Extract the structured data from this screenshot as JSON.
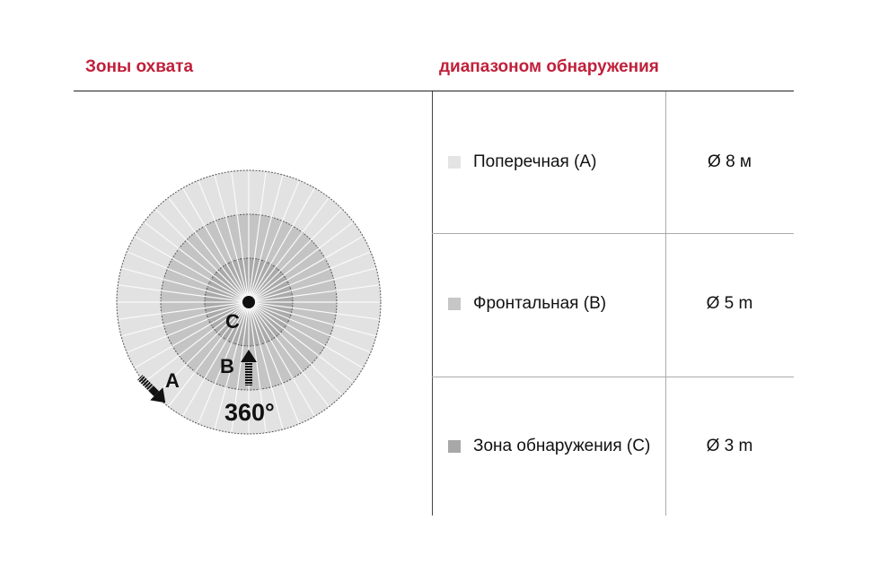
{
  "header": {
    "left_title": "Зоны охвата",
    "right_title": "диапазоном обнаружения"
  },
  "accent_color": "#c0203a",
  "diagram": {
    "angle_label": "360°",
    "zone_labels": [
      "A",
      "B",
      "C"
    ],
    "zone_colors": {
      "A": "#e2e2e2",
      "B": "#c4c4c4",
      "C": "#aaaaaa"
    }
  },
  "zones": [
    {
      "name": "Поперечная (A)",
      "diameter": "Ø 8 м",
      "color": "#e4e4e4"
    },
    {
      "name": "Фронтальная (B)",
      "diameter": "Ø 5 m",
      "color": "#c6c6c6"
    },
    {
      "name": "Зона обнаружения (C)",
      "diameter": "Ø 3 m",
      "color": "#a8a8a8"
    }
  ]
}
